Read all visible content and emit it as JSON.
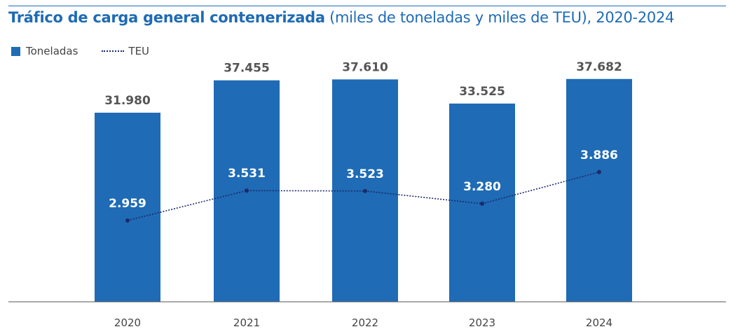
{
  "chart_data": {
    "type": "bar",
    "title": "Tráfico de carga general contenerizada",
    "subtitle": "(miles de toneladas y miles de TEU), 2020-2024",
    "categories": [
      "2020",
      "2021",
      "2022",
      "2023",
      "2024"
    ],
    "series": [
      {
        "name": "Toneladas",
        "type": "bar",
        "values": [
          31980,
          37455,
          37610,
          33525,
          37682
        ],
        "labels": [
          "31.980",
          "37.455",
          "37.610",
          "33.525",
          "37.682"
        ],
        "color": "#1f6bb5"
      },
      {
        "name": "TEU",
        "type": "line",
        "style": "dotted",
        "values": [
          2959,
          3531,
          3523,
          3280,
          3886
        ],
        "labels": [
          "2.959",
          "3.531",
          "3.523",
          "3.280",
          "3.886"
        ],
        "color": "#1b2a6b"
      }
    ],
    "ylim": [
      0,
      45000
    ],
    "y2lim": [
      1400,
      6500
    ],
    "grid": false,
    "legend": "top-left"
  }
}
